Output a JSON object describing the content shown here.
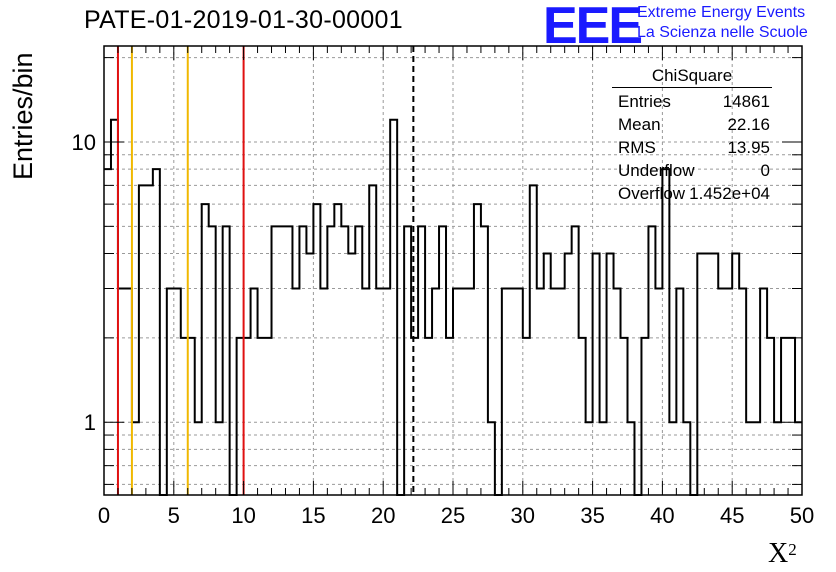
{
  "title": "PATE-01-2019-01-30-00001",
  "logo": {
    "mark": "EEE",
    "line1": "Extreme Energy Events",
    "line2": "La Scienza nelle Scuole",
    "color": "#1a1aff"
  },
  "stats": {
    "header": "ChiSquare",
    "rows": [
      {
        "key": "Entries",
        "value": "14861"
      },
      {
        "key": "Mean",
        "value": "22.16"
      },
      {
        "key": "RMS",
        "value": "13.95"
      },
      {
        "key": "Underflow",
        "value": "0"
      },
      {
        "key": "Overflow",
        "value": "1.452e+04"
      }
    ]
  },
  "chart_data": {
    "type": "histogram",
    "scale": "log",
    "xlabel_base": "X",
    "xlabel_sup": "2",
    "ylabel": "Entries/bin",
    "xlim": [
      0,
      50
    ],
    "ylim": [
      0.55,
      22
    ],
    "bin_width": 0.5,
    "x_ticks": [
      0,
      5,
      10,
      15,
      20,
      25,
      30,
      35,
      40,
      45,
      50
    ],
    "y_ticks": [
      1,
      10
    ],
    "grid": true,
    "counts": [
      8,
      12,
      3,
      3,
      1,
      7,
      7,
      8,
      0,
      3,
      3,
      2,
      2,
      1,
      6,
      5,
      1,
      5,
      0,
      2,
      2,
      3,
      2,
      2,
      5,
      5,
      5,
      3,
      5,
      4,
      6,
      3,
      5,
      6,
      5,
      4,
      5,
      3,
      7,
      3,
      3,
      12,
      0,
      5,
      2,
      5,
      2,
      3,
      5,
      2,
      3,
      3,
      3,
      6,
      5,
      1,
      0,
      3,
      3,
      3,
      2,
      7,
      3,
      4,
      3,
      3,
      4,
      5,
      2,
      1,
      4,
      1,
      4,
      3,
      2,
      1,
      0,
      2,
      5,
      3,
      8,
      1,
      3,
      1,
      0,
      4,
      4,
      4,
      3,
      3,
      4,
      3,
      1,
      1,
      3,
      2,
      1,
      2,
      2,
      1
    ],
    "vertical_lines": [
      {
        "x": 1,
        "color": "#e01010",
        "style": "solid"
      },
      {
        "x": 2,
        "color": "#f0b800",
        "style": "solid"
      },
      {
        "x": 6,
        "color": "#f0b800",
        "style": "solid"
      },
      {
        "x": 10,
        "color": "#e01010",
        "style": "solid"
      },
      {
        "x": 22.16,
        "color": "#000000",
        "style": "dashed"
      }
    ]
  }
}
